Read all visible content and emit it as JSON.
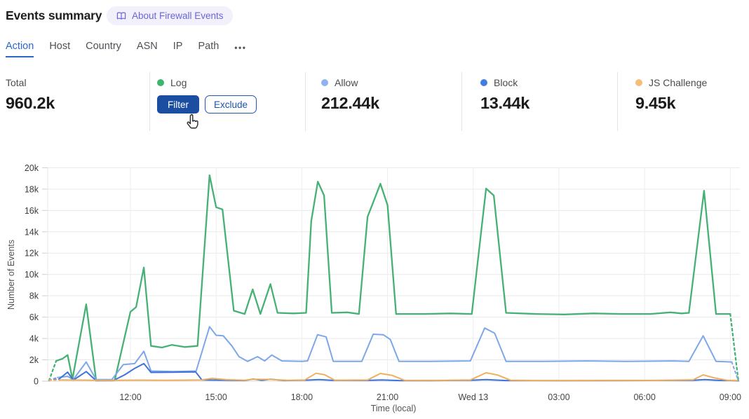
{
  "header": {
    "title": "Events summary",
    "about_badge": "About Firewall Events"
  },
  "tabs": {
    "items": [
      "Action",
      "Host",
      "Country",
      "ASN",
      "IP",
      "Path"
    ],
    "active": "Action",
    "more_label": "•••",
    "active_color": "#2c67c8"
  },
  "stats": {
    "groups": [
      {
        "label": "Total",
        "value": "960.2k"
      },
      {
        "label": "Log",
        "dot_color": "#3fb46e",
        "filter_label": "Filter",
        "exclude_label": "Exclude"
      },
      {
        "label": "Allow",
        "dot_color": "#8db3f0",
        "value": "212.44k"
      },
      {
        "label": "Block",
        "dot_color": "#3f7de2",
        "value": "13.44k"
      },
      {
        "label": "JS Challenge",
        "dot_color": "#f3bf78",
        "value": "9.45k"
      }
    ],
    "filter_button_color": "#1b4da0"
  },
  "chart_data": {
    "type": "line",
    "title": "",
    "xlabel": "Time (local)",
    "ylabel": "Number of Events",
    "x_unit": "hours since Tue 00:00 local (24 = Wed 13 00:00)",
    "x_range": [
      9.1,
      33.3
    ],
    "y_range": [
      0,
      20000
    ],
    "grid": true,
    "legend_position": "stats-row-above-chart",
    "y_ticks": [
      {
        "v": 0,
        "label": "0"
      },
      {
        "v": 2000,
        "label": "2k"
      },
      {
        "v": 4000,
        "label": "4k"
      },
      {
        "v": 6000,
        "label": "6k"
      },
      {
        "v": 8000,
        "label": "8k"
      },
      {
        "v": 10000,
        "label": "10k"
      },
      {
        "v": 12000,
        "label": "12k"
      },
      {
        "v": 14000,
        "label": "14k"
      },
      {
        "v": 16000,
        "label": "16k"
      },
      {
        "v": 18000,
        "label": "18k"
      },
      {
        "v": 20000,
        "label": "20k"
      }
    ],
    "x_ticks": [
      {
        "t": 12,
        "label": "12:00"
      },
      {
        "t": 15,
        "label": "15:00"
      },
      {
        "t": 18,
        "label": "18:00"
      },
      {
        "t": 21,
        "label": "21:00"
      },
      {
        "t": 24,
        "label": "Wed 13"
      },
      {
        "t": 27,
        "label": "03:00"
      },
      {
        "t": 30,
        "label": "06:00"
      },
      {
        "t": 33,
        "label": "09:00"
      }
    ],
    "series": [
      {
        "name": "Log",
        "color": "#46b175",
        "dashed_head": 1,
        "dashed_tail": 1,
        "points": [
          [
            9.15,
            50
          ],
          [
            9.4,
            1900
          ],
          [
            9.62,
            2100
          ],
          [
            9.8,
            2450
          ],
          [
            9.97,
            200
          ],
          [
            10.45,
            7200
          ],
          [
            10.8,
            80
          ],
          [
            11.45,
            80
          ],
          [
            12.0,
            6500
          ],
          [
            12.2,
            6950
          ],
          [
            12.47,
            10650
          ],
          [
            12.72,
            3300
          ],
          [
            13.1,
            3150
          ],
          [
            13.45,
            3400
          ],
          [
            13.9,
            3200
          ],
          [
            14.35,
            3300
          ],
          [
            14.77,
            19300
          ],
          [
            15.0,
            16300
          ],
          [
            15.22,
            16100
          ],
          [
            15.62,
            6600
          ],
          [
            16.0,
            6300
          ],
          [
            16.28,
            8600
          ],
          [
            16.55,
            6300
          ],
          [
            16.9,
            9100
          ],
          [
            17.15,
            6400
          ],
          [
            17.7,
            6350
          ],
          [
            18.15,
            6400
          ],
          [
            18.33,
            15000
          ],
          [
            18.56,
            18700
          ],
          [
            18.78,
            17400
          ],
          [
            19.05,
            6400
          ],
          [
            19.6,
            6450
          ],
          [
            20.0,
            6300
          ],
          [
            20.3,
            15400
          ],
          [
            20.75,
            18500
          ],
          [
            21.0,
            16500
          ],
          [
            21.3,
            6300
          ],
          [
            22.3,
            6300
          ],
          [
            23.2,
            6350
          ],
          [
            23.95,
            6300
          ],
          [
            24.45,
            18050
          ],
          [
            24.72,
            17400
          ],
          [
            25.15,
            6400
          ],
          [
            26.2,
            6300
          ],
          [
            27.2,
            6250
          ],
          [
            28.2,
            6350
          ],
          [
            29.2,
            6300
          ],
          [
            30.2,
            6300
          ],
          [
            30.9,
            6450
          ],
          [
            31.3,
            6350
          ],
          [
            31.55,
            6400
          ],
          [
            32.08,
            17850
          ],
          [
            32.5,
            6300
          ],
          [
            33.0,
            6300
          ],
          [
            33.28,
            100
          ]
        ]
      },
      {
        "name": "Allow",
        "color": "#7da7e9",
        "dashed_head": 1,
        "dashed_tail": 1,
        "points": [
          [
            9.15,
            100
          ],
          [
            9.45,
            350
          ],
          [
            9.8,
            450
          ],
          [
            10.0,
            150
          ],
          [
            10.45,
            1800
          ],
          [
            10.8,
            150
          ],
          [
            11.35,
            150
          ],
          [
            11.75,
            1550
          ],
          [
            12.15,
            1650
          ],
          [
            12.47,
            2800
          ],
          [
            12.72,
            950
          ],
          [
            13.5,
            900
          ],
          [
            14.3,
            950
          ],
          [
            14.77,
            5100
          ],
          [
            15.0,
            4300
          ],
          [
            15.25,
            4250
          ],
          [
            15.55,
            3300
          ],
          [
            15.8,
            2300
          ],
          [
            16.1,
            1850
          ],
          [
            16.45,
            2300
          ],
          [
            16.7,
            1900
          ],
          [
            16.95,
            2450
          ],
          [
            17.3,
            1900
          ],
          [
            18.0,
            1850
          ],
          [
            18.2,
            1900
          ],
          [
            18.55,
            4350
          ],
          [
            18.85,
            4150
          ],
          [
            19.1,
            1850
          ],
          [
            20.1,
            1850
          ],
          [
            20.5,
            4400
          ],
          [
            20.85,
            4350
          ],
          [
            21.1,
            3900
          ],
          [
            21.4,
            1850
          ],
          [
            22.5,
            1850
          ],
          [
            23.9,
            1900
          ],
          [
            24.4,
            4980
          ],
          [
            24.75,
            4500
          ],
          [
            25.15,
            1850
          ],
          [
            26.5,
            1850
          ],
          [
            28.0,
            1900
          ],
          [
            29.5,
            1850
          ],
          [
            31.0,
            1900
          ],
          [
            31.55,
            1850
          ],
          [
            32.05,
            4250
          ],
          [
            32.5,
            1850
          ],
          [
            33.05,
            1800
          ],
          [
            33.28,
            60
          ]
        ]
      },
      {
        "name": "Block",
        "color": "#3d73da",
        "dashed_head": 1,
        "dashed_tail": 0,
        "points": [
          [
            9.15,
            80
          ],
          [
            9.5,
            200
          ],
          [
            9.8,
            850
          ],
          [
            10.0,
            100
          ],
          [
            10.45,
            900
          ],
          [
            10.8,
            50
          ],
          [
            11.4,
            60
          ],
          [
            11.8,
            600
          ],
          [
            12.15,
            1200
          ],
          [
            12.47,
            1650
          ],
          [
            12.72,
            820
          ],
          [
            13.5,
            840
          ],
          [
            14.28,
            870
          ],
          [
            14.5,
            120
          ],
          [
            15.2,
            90
          ],
          [
            16.0,
            60
          ],
          [
            16.3,
            200
          ],
          [
            16.6,
            80
          ],
          [
            16.9,
            180
          ],
          [
            17.4,
            60
          ],
          [
            18.2,
            100
          ],
          [
            18.6,
            150
          ],
          [
            19.1,
            70
          ],
          [
            20.3,
            70
          ],
          [
            20.8,
            110
          ],
          [
            21.4,
            60
          ],
          [
            22.5,
            50
          ],
          [
            23.9,
            80
          ],
          [
            24.45,
            150
          ],
          [
            25.15,
            60
          ],
          [
            27.0,
            50
          ],
          [
            29.0,
            60
          ],
          [
            31.7,
            80
          ],
          [
            32.1,
            150
          ],
          [
            32.6,
            70
          ],
          [
            33.05,
            60
          ],
          [
            33.28,
            30
          ]
        ]
      },
      {
        "name": "JS Challenge",
        "color": "#efb05e",
        "dashed_head": 1,
        "dashed_tail": 0,
        "points": [
          [
            9.15,
            90
          ],
          [
            9.6,
            110
          ],
          [
            10.4,
            100
          ],
          [
            11.1,
            70
          ],
          [
            12.3,
            100
          ],
          [
            13.2,
            80
          ],
          [
            14.5,
            120
          ],
          [
            14.85,
            260
          ],
          [
            15.35,
            150
          ],
          [
            16.0,
            90
          ],
          [
            16.3,
            180
          ],
          [
            16.95,
            160
          ],
          [
            17.5,
            80
          ],
          [
            18.1,
            110
          ],
          [
            18.5,
            740
          ],
          [
            18.8,
            600
          ],
          [
            19.15,
            90
          ],
          [
            20.3,
            110
          ],
          [
            20.75,
            720
          ],
          [
            21.15,
            550
          ],
          [
            21.6,
            80
          ],
          [
            22.7,
            70
          ],
          [
            23.9,
            110
          ],
          [
            24.45,
            790
          ],
          [
            24.85,
            580
          ],
          [
            25.3,
            90
          ],
          [
            26.5,
            60
          ],
          [
            28.5,
            70
          ],
          [
            30.5,
            70
          ],
          [
            31.7,
            130
          ],
          [
            32.05,
            590
          ],
          [
            32.45,
            300
          ],
          [
            32.9,
            80
          ],
          [
            33.25,
            60
          ]
        ]
      }
    ]
  }
}
